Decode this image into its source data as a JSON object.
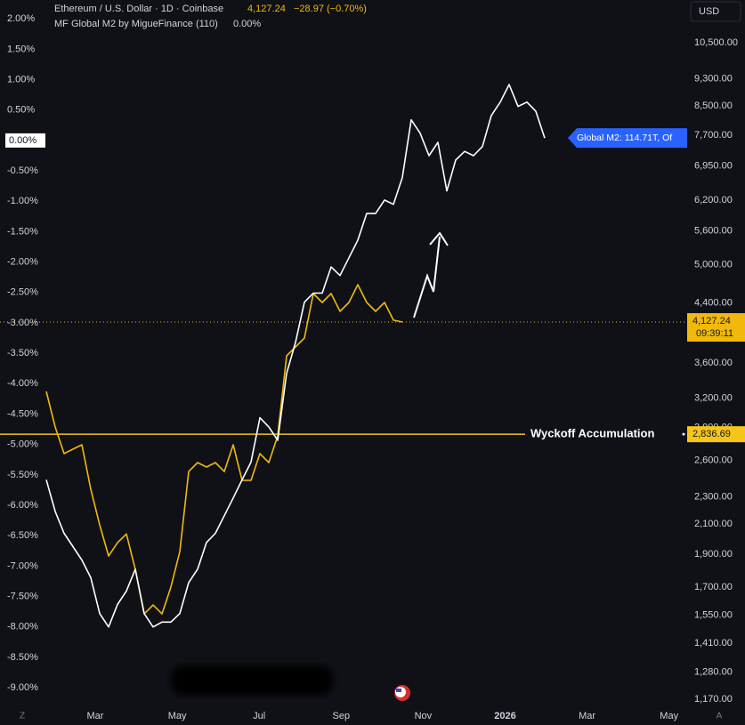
{
  "chart_data": {
    "type": "line",
    "currency": "USD",
    "last_price": {
      "value": 4127.24,
      "label": "4,127.24"
    },
    "change_text": "−28.97 (−0.70%)",
    "countdown": "09:39:11",
    "indicator_value": "0.00%",
    "m2_tag": "Global M2: 114.71T, Of",
    "annotation": {
      "text": "Wyckoff Accumulation",
      "value": 2836.69,
      "label": "2,836.69",
      "color": "#f5c518"
    },
    "xticks": [
      "Mar",
      "May",
      "Jul",
      "Sep",
      "Nov",
      "2026",
      "Mar",
      "May"
    ],
    "scale_buttons": [
      "Z",
      "A"
    ],
    "ylim": [
      -9.32,
      2.31
    ],
    "yticks": [
      {
        "value": 2,
        "label": "2.00%"
      },
      {
        "value": 1.5,
        "label": "1.50%"
      },
      {
        "value": 1,
        "label": "1.00%"
      },
      {
        "value": 0.5,
        "label": "0.50%"
      },
      {
        "value": 0,
        "label": "0.00%"
      },
      {
        "value": -0.5,
        "label": "-0.50%"
      },
      {
        "value": -1,
        "label": "-1.00%"
      },
      {
        "value": -1.5,
        "label": "-1.50%"
      },
      {
        "value": -2,
        "label": "-2.00%"
      },
      {
        "value": -2.5,
        "label": "-2.50%"
      },
      {
        "value": -3,
        "label": "-3.00%"
      },
      {
        "value": -3.5,
        "label": "-3.50%"
      },
      {
        "value": -4,
        "label": "-4.00%"
      },
      {
        "value": -4.5,
        "label": "-4.50%"
      },
      {
        "value": -5,
        "label": "-5.00%"
      },
      {
        "value": -5.5,
        "label": "-5.50%"
      },
      {
        "value": -6,
        "label": "-6.00%"
      },
      {
        "value": -6.5,
        "label": "-6.50%"
      },
      {
        "value": -7,
        "label": "-7.00%"
      },
      {
        "value": -7.5,
        "label": "-7.50%"
      },
      {
        "value": -8,
        "label": "-8.00%"
      },
      {
        "value": -8.5,
        "label": "-8.50%"
      },
      {
        "value": -9,
        "label": "-9.00%"
      }
    ],
    "y2lim": [
      1139,
      12111
    ],
    "y2log": true,
    "y2ticks": [
      {
        "value": 10500,
        "label": "10,500.00"
      },
      {
        "value": 9300,
        "label": "9,300.00"
      },
      {
        "value": 8500,
        "label": "8,500.00"
      },
      {
        "value": 7700,
        "label": "7,700.00"
      },
      {
        "value": 6950,
        "label": "6,950.00"
      },
      {
        "value": 6200,
        "label": "6,200.00"
      },
      {
        "value": 5600,
        "label": "5,600.00"
      },
      {
        "value": 5000,
        "label": "5,000.00"
      },
      {
        "value": 4400,
        "label": "4,400.00"
      },
      {
        "value": 3600,
        "label": "3,600.00"
      },
      {
        "value": 3200,
        "label": "3,200.00"
      },
      {
        "value": 2900,
        "label": "2,900.00"
      },
      {
        "value": 2600,
        "label": "2,600.00"
      },
      {
        "value": 2300,
        "label": "2,300.00"
      },
      {
        "value": 2100,
        "label": "2,100.00"
      },
      {
        "value": 1900,
        "label": "1,900.00"
      },
      {
        "value": 1700,
        "label": "1,700.00"
      },
      {
        "value": 1550,
        "label": "1,550.00"
      },
      {
        "value": 1410,
        "label": "1,410.00"
      },
      {
        "value": 1280,
        "label": "1,280.00"
      },
      {
        "value": 1170,
        "label": "1,170.00"
      }
    ],
    "grid": false,
    "series": [
      {
        "name": "Ethereum / U.S. Dollar · 1D · Coinbase",
        "color": "#f0b90b",
        "axis": "y2",
        "values": [
          3273,
          2906,
          2659,
          2699,
          2738,
          2360,
          2095,
          1888,
          1974,
          2033,
          1806,
          1556,
          1603,
          1556,
          1702,
          1916,
          2504,
          2580,
          2542,
          2580,
          2504,
          2738,
          2431,
          2431,
          2659,
          2580,
          2821,
          3687,
          3798,
          3912,
          4539,
          4407,
          4539,
          4278,
          4407,
          4677,
          4407,
          4278,
          4407,
          4153,
          4127.24,
          null,
          null,
          null,
          null,
          null,
          null,
          null,
          null,
          null,
          null,
          null,
          null,
          null,
          null,
          null,
          null
        ]
      },
      {
        "name": "MF Global M2 by MigueFinance (110)",
        "color": "#ffffff",
        "axis": "y",
        "values": [
          -5.58,
          -6.1,
          -6.46,
          -6.68,
          -6.9,
          -7.19,
          -7.78,
          -8.0,
          -7.63,
          -7.41,
          -7.05,
          -7.78,
          -8.0,
          -7.92,
          -7.92,
          -7.78,
          -7.27,
          -7.05,
          -6.61,
          -6.46,
          -6.17,
          -5.88,
          -5.58,
          -5.29,
          -4.56,
          -4.71,
          -4.93,
          -3.83,
          -3.32,
          -2.66,
          -2.51,
          -2.51,
          -2.08,
          -2.22,
          -1.93,
          -1.64,
          -1.2,
          -1.2,
          -0.98,
          -1.05,
          -0.61,
          0.34,
          0.12,
          -0.25,
          -0.03,
          -0.83,
          -0.32,
          -0.18,
          -0.25,
          -0.1,
          0.41,
          0.63,
          0.92,
          0.56,
          0.63,
          0.48,
          0.04
        ]
      }
    ]
  }
}
